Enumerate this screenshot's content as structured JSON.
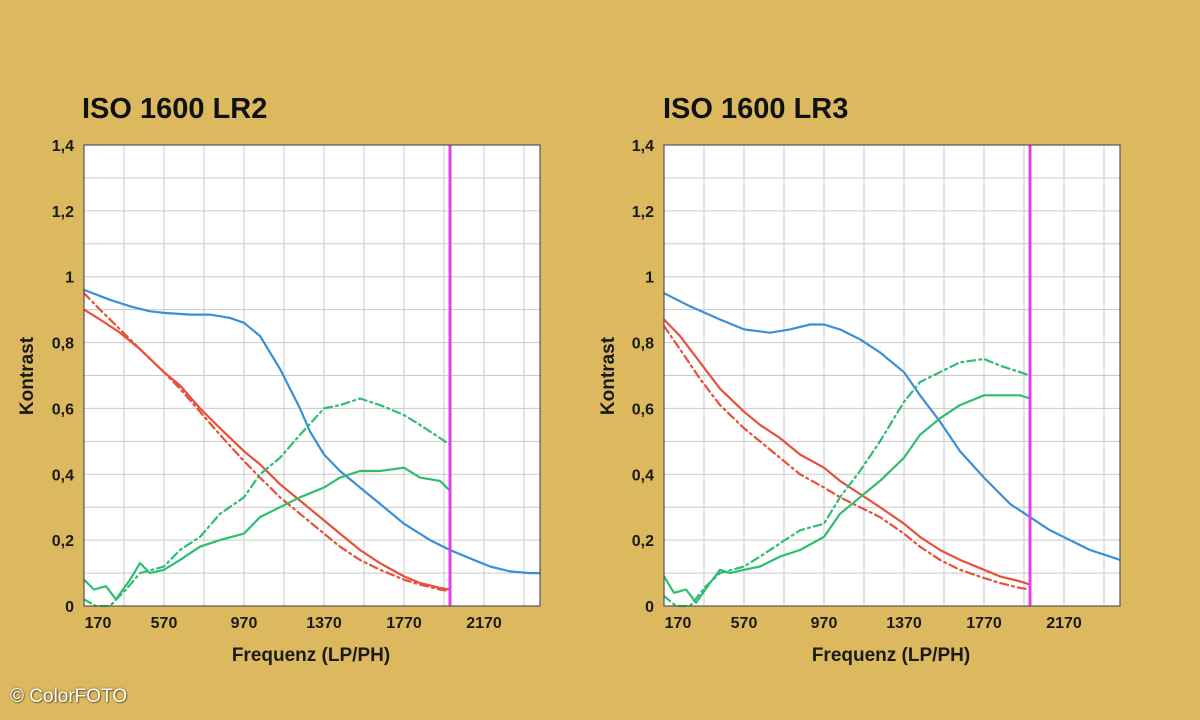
{
  "copyright": "© ColorFOTO",
  "chart_data": [
    {
      "type": "line",
      "title": "ISO 1600 LR2",
      "xlabel": "Frequenz (LP/PH)",
      "ylabel": "Kontrast",
      "xlim": [
        170,
        2450
      ],
      "ylim": [
        0,
        1.4
      ],
      "xticks": [
        170,
        570,
        970,
        1370,
        1770,
        2170
      ],
      "xtick_labels": [
        "170",
        "570",
        "970",
        "1370",
        "1770",
        "2170"
      ],
      "yticks": [
        0,
        0.2,
        0.4,
        0.6,
        0.8,
        1.0,
        1.2,
        1.4
      ],
      "ytick_labels": [
        "0",
        "0,2",
        "0,4",
        "0,6",
        "0,8",
        "1",
        "1,2",
        "1,4"
      ],
      "grid": true,
      "marker_line": {
        "x": 2000,
        "color": "#e040e8"
      },
      "series": [
        {
          "name": "blue",
          "color": "#3a8fd6",
          "style": "solid",
          "x": [
            170,
            300,
            400,
            500,
            570,
            700,
            800,
            900,
            970,
            1050,
            1100,
            1150,
            1200,
            1250,
            1300,
            1370,
            1450,
            1550,
            1650,
            1770,
            1900,
            2000,
            2100,
            2200,
            2300,
            2400,
            2450
          ],
          "y": [
            0.96,
            0.93,
            0.91,
            0.895,
            0.89,
            0.885,
            0.885,
            0.875,
            0.86,
            0.82,
            0.77,
            0.72,
            0.66,
            0.6,
            0.53,
            0.46,
            0.41,
            0.36,
            0.31,
            0.25,
            0.2,
            0.17,
            0.145,
            0.12,
            0.105,
            0.1,
            0.1
          ]
        },
        {
          "name": "red",
          "color": "#e8503a",
          "style": "solid",
          "x": [
            170,
            250,
            350,
            450,
            570,
            650,
            750,
            850,
            970,
            1050,
            1150,
            1250,
            1370,
            1450,
            1550,
            1650,
            1770,
            1850,
            1950,
            2000
          ],
          "y": [
            0.9,
            0.87,
            0.83,
            0.78,
            0.71,
            0.67,
            0.6,
            0.54,
            0.47,
            0.43,
            0.37,
            0.32,
            0.26,
            0.22,
            0.17,
            0.13,
            0.09,
            0.07,
            0.055,
            0.05
          ]
        },
        {
          "name": "red-dashdot",
          "color": "#e8503a",
          "style": "dashdot",
          "x": [
            170,
            250,
            350,
            450,
            570,
            650,
            750,
            850,
            970,
            1050,
            1150,
            1250,
            1370,
            1450,
            1550,
            1650,
            1770,
            1850,
            1950,
            2000
          ],
          "y": [
            0.95,
            0.9,
            0.84,
            0.78,
            0.71,
            0.66,
            0.59,
            0.52,
            0.44,
            0.39,
            0.33,
            0.28,
            0.22,
            0.18,
            0.14,
            0.11,
            0.08,
            0.065,
            0.05,
            0.045
          ]
        },
        {
          "name": "green",
          "color": "#2ebd72",
          "style": "solid",
          "x": [
            170,
            220,
            280,
            330,
            400,
            450,
            500,
            570,
            650,
            750,
            850,
            970,
            1050,
            1150,
            1250,
            1370,
            1450,
            1550,
            1650,
            1770,
            1850,
            1950,
            2000
          ],
          "y": [
            0.08,
            0.05,
            0.06,
            0.02,
            0.08,
            0.13,
            0.1,
            0.11,
            0.14,
            0.18,
            0.2,
            0.22,
            0.27,
            0.3,
            0.33,
            0.36,
            0.39,
            0.41,
            0.41,
            0.42,
            0.39,
            0.38,
            0.35
          ]
        },
        {
          "name": "green-dashdot",
          "color": "#2ebd72",
          "style": "dashdot",
          "x": [
            170,
            230,
            300,
            380,
            450,
            570,
            650,
            750,
            850,
            970,
            1050,
            1150,
            1250,
            1370,
            1450,
            1550,
            1650,
            1770,
            1850,
            1950,
            2000
          ],
          "y": [
            0.02,
            0.0,
            0.0,
            0.05,
            0.1,
            0.12,
            0.17,
            0.21,
            0.28,
            0.33,
            0.4,
            0.45,
            0.52,
            0.6,
            0.61,
            0.63,
            0.61,
            0.58,
            0.55,
            0.51,
            0.49
          ]
        }
      ]
    },
    {
      "type": "line",
      "title": "ISO 1600 LR3",
      "xlabel": "Frequenz (LP/PH)",
      "ylabel": "Kontrast",
      "xlim": [
        170,
        2450
      ],
      "ylim": [
        0,
        1.4
      ],
      "xticks": [
        170,
        570,
        970,
        1370,
        1770,
        2170
      ],
      "xtick_labels": [
        "170",
        "570",
        "970",
        "1370",
        "1770",
        "2170"
      ],
      "yticks": [
        0,
        0.2,
        0.4,
        0.6,
        0.8,
        1.0,
        1.2,
        1.4
      ],
      "ytick_labels": [
        "0",
        "0,2",
        "0,4",
        "0,6",
        "0,8",
        "1",
        "1,2",
        "1,4"
      ],
      "grid": true,
      "marker_line": {
        "x": 2000,
        "color": "#e040e8"
      },
      "series": [
        {
          "name": "blue",
          "color": "#3a8fd6",
          "style": "solid",
          "x": [
            170,
            300,
            450,
            570,
            700,
            800,
            900,
            970,
            1050,
            1150,
            1250,
            1370,
            1450,
            1550,
            1650,
            1770,
            1900,
            2000,
            2100,
            2200,
            2300,
            2400,
            2450
          ],
          "y": [
            0.95,
            0.91,
            0.87,
            0.84,
            0.83,
            0.84,
            0.855,
            0.855,
            0.84,
            0.81,
            0.77,
            0.71,
            0.64,
            0.56,
            0.47,
            0.39,
            0.31,
            0.27,
            0.23,
            0.2,
            0.17,
            0.15,
            0.14
          ]
        },
        {
          "name": "red",
          "color": "#e8503a",
          "style": "solid",
          "x": [
            170,
            250,
            350,
            450,
            570,
            650,
            750,
            850,
            970,
            1050,
            1150,
            1250,
            1370,
            1450,
            1550,
            1650,
            1770,
            1850,
            1950,
            2000
          ],
          "y": [
            0.87,
            0.82,
            0.74,
            0.66,
            0.59,
            0.55,
            0.51,
            0.46,
            0.42,
            0.38,
            0.34,
            0.3,
            0.25,
            0.21,
            0.17,
            0.14,
            0.11,
            0.09,
            0.075,
            0.065
          ]
        },
        {
          "name": "red-dashdot",
          "color": "#e8503a",
          "style": "dashdot",
          "x": [
            170,
            250,
            350,
            450,
            570,
            650,
            750,
            850,
            970,
            1050,
            1150,
            1250,
            1370,
            1450,
            1550,
            1650,
            1770,
            1850,
            1950,
            2000
          ],
          "y": [
            0.85,
            0.78,
            0.69,
            0.61,
            0.54,
            0.5,
            0.45,
            0.4,
            0.36,
            0.33,
            0.3,
            0.27,
            0.22,
            0.18,
            0.14,
            0.11,
            0.085,
            0.07,
            0.055,
            0.05
          ]
        },
        {
          "name": "green",
          "color": "#2ebd72",
          "style": "solid",
          "x": [
            170,
            220,
            280,
            330,
            400,
            450,
            500,
            570,
            650,
            750,
            850,
            970,
            1050,
            1150,
            1250,
            1370,
            1450,
            1550,
            1650,
            1770,
            1850,
            1950,
            2000
          ],
          "y": [
            0.09,
            0.04,
            0.05,
            0.01,
            0.07,
            0.11,
            0.1,
            0.11,
            0.12,
            0.15,
            0.17,
            0.21,
            0.28,
            0.33,
            0.38,
            0.45,
            0.52,
            0.57,
            0.61,
            0.64,
            0.64,
            0.64,
            0.63
          ]
        },
        {
          "name": "green-dashdot",
          "color": "#2ebd72",
          "style": "dashdot",
          "x": [
            170,
            230,
            300,
            380,
            450,
            570,
            650,
            750,
            850,
            970,
            1050,
            1150,
            1250,
            1370,
            1450,
            1550,
            1650,
            1770,
            1850,
            1950,
            2000
          ],
          "y": [
            0.03,
            0.0,
            0.0,
            0.06,
            0.1,
            0.12,
            0.15,
            0.19,
            0.23,
            0.25,
            0.33,
            0.41,
            0.5,
            0.62,
            0.68,
            0.71,
            0.74,
            0.75,
            0.73,
            0.71,
            0.7
          ]
        }
      ]
    }
  ]
}
